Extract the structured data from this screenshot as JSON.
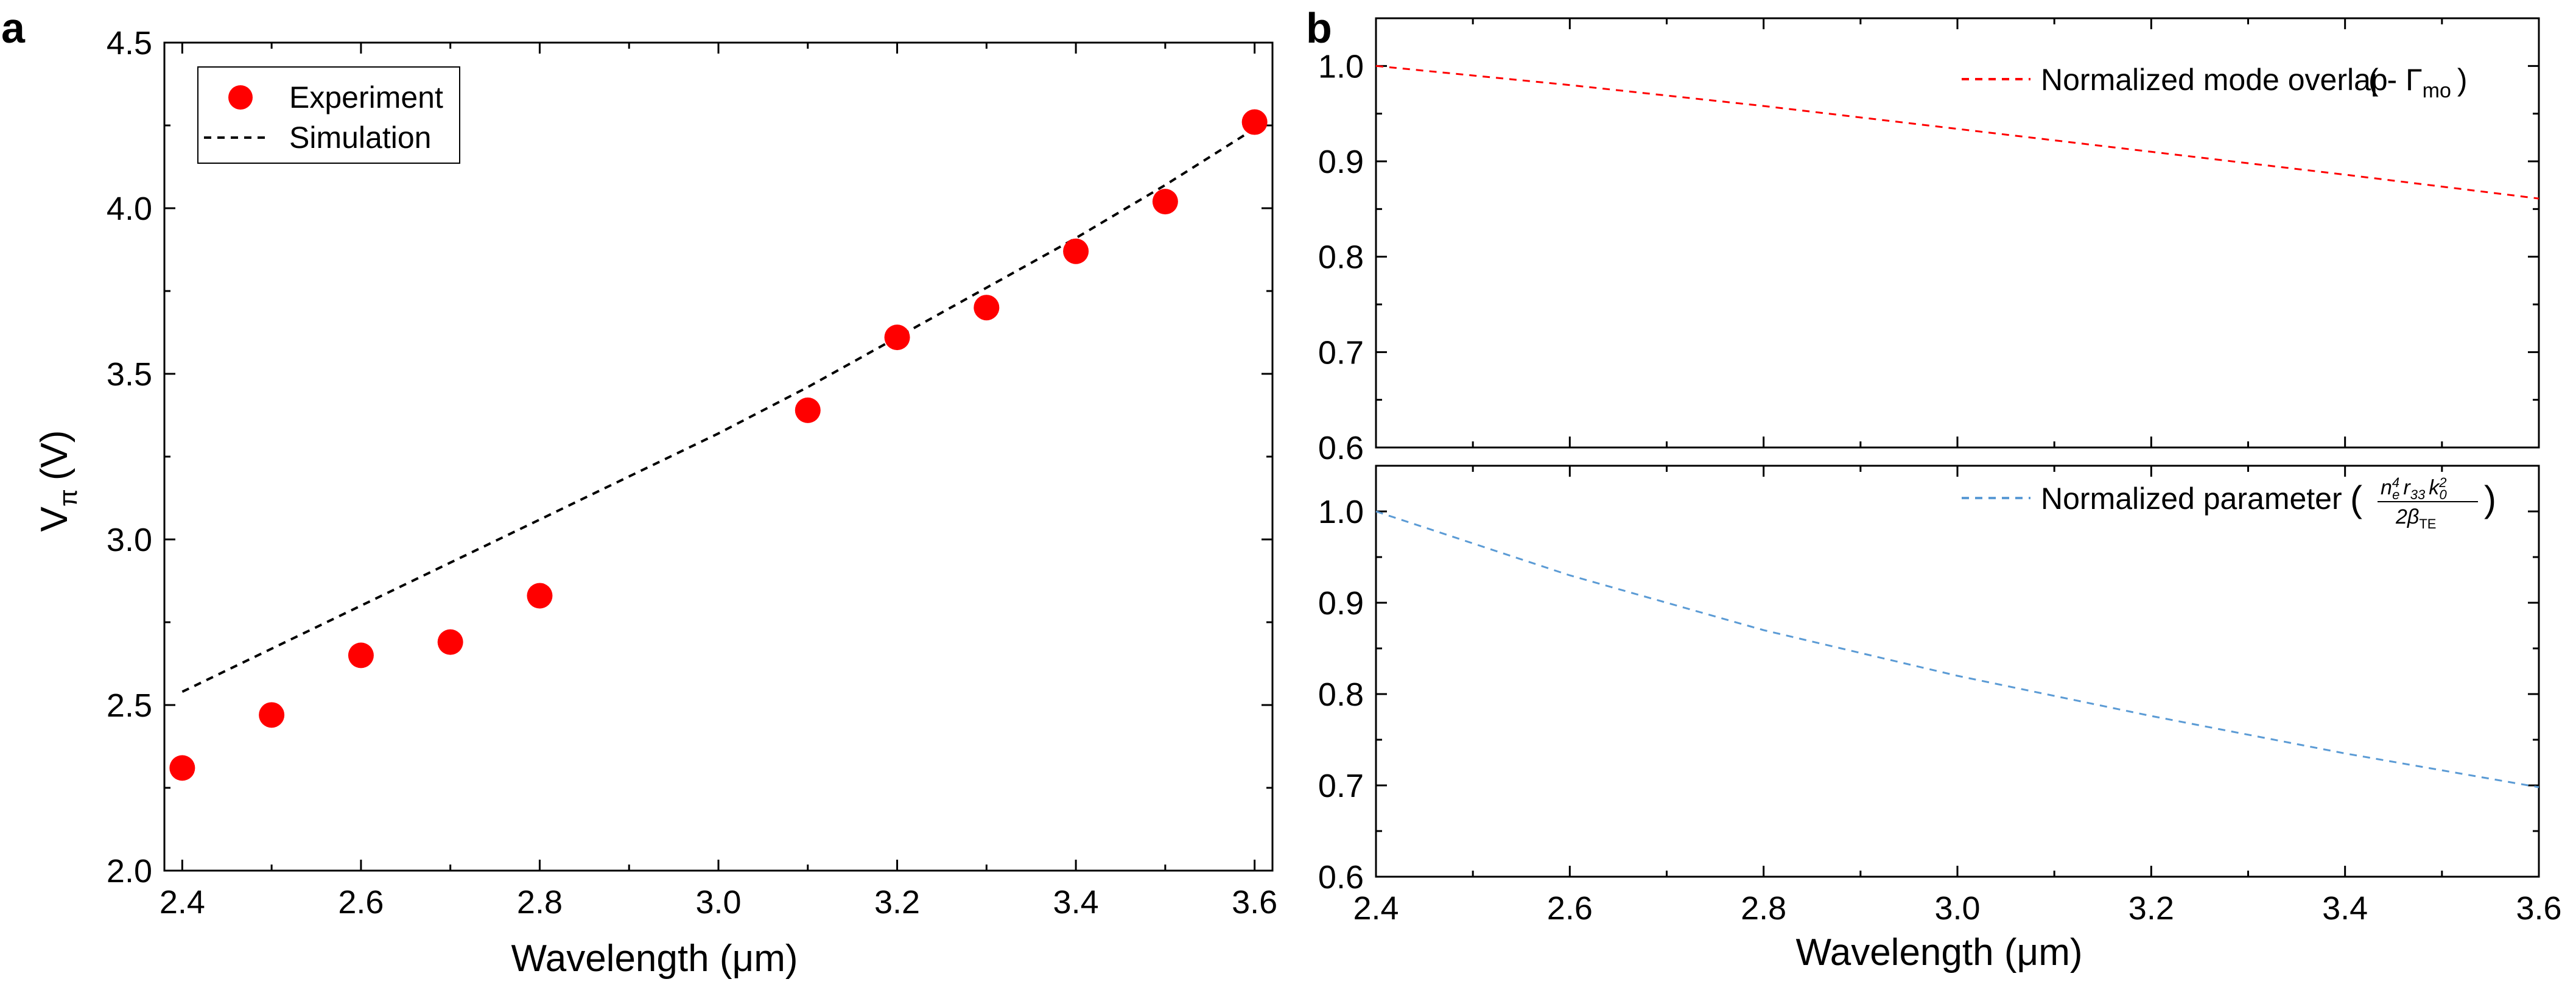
{
  "chart_data": [
    {
      "panel_label": "a",
      "type": "scatter",
      "xlabel": "Wavelength (μm)",
      "ylabel": "V",
      "ylabel_sub": "π",
      "ylabel_unit": "(V)",
      "xlim": [
        2.38,
        3.62
      ],
      "ylim": [
        2.0,
        4.5
      ],
      "xticks": [
        "2.4",
        "2.6",
        "2.8",
        "3.0",
        "3.2",
        "3.4",
        "3.6"
      ],
      "yticks": [
        "2.0",
        "2.5",
        "3.0",
        "3.5",
        "4.0",
        "4.5"
      ],
      "series": [
        {
          "name": "Experiment",
          "style": "markers",
          "color": "#ff0000",
          "x": [
            2.4,
            2.5,
            2.6,
            2.7,
            2.8,
            3.1,
            3.2,
            3.3,
            3.4,
            3.5,
            3.6
          ],
          "y": [
            2.31,
            2.47,
            2.65,
            2.69,
            2.83,
            3.39,
            3.61,
            3.7,
            3.87,
            4.02,
            4.26
          ]
        },
        {
          "name": "Simulation",
          "style": "dashed",
          "color": "#000000",
          "x": [
            2.4,
            2.5,
            2.6,
            2.7,
            2.8,
            2.9,
            3.0,
            3.1,
            3.2,
            3.3,
            3.4,
            3.5,
            3.6
          ],
          "y": [
            2.54,
            2.67,
            2.8,
            2.93,
            3.06,
            3.19,
            3.32,
            3.46,
            3.61,
            3.76,
            3.91,
            4.07,
            4.24
          ]
        }
      ]
    },
    {
      "panel_label": "b",
      "type": "line",
      "xlabel": "Wavelength (μm)",
      "xlim": [
        2.4,
        3.6
      ],
      "xticks": [
        "2.4",
        "2.6",
        "2.8",
        "3.0",
        "3.2",
        "3.4",
        "3.6"
      ],
      "subplots": [
        {
          "ylim": [
            0.6,
            1.05
          ],
          "yticks": [
            "0.6",
            "0.7",
            "0.8",
            "0.9",
            "1.0"
          ],
          "series": [
            {
              "name": "Normalized mode overlap",
              "formula": "( - Γ",
              "formula_sub": "mo",
              "formula_close": ")",
              "style": "dashed",
              "color": "#ff0000",
              "x": [
                2.4,
                2.6,
                2.8,
                3.0,
                3.2,
                3.4,
                3.6
              ],
              "y": [
                1.0,
                0.98,
                0.958,
                0.934,
                0.91,
                0.886,
                0.861
              ]
            }
          ]
        },
        {
          "ylim": [
            0.6,
            1.05
          ],
          "yticks": [
            "0.6",
            "0.7",
            "0.8",
            "0.9",
            "1.0"
          ],
          "series": [
            {
              "name": "Normalized parameter",
              "formula_num": "n",
              "formula_num_sup": "4",
              "formula_num_sub": "e",
              "formula_num2": "r",
              "formula_num2_sub": "33",
              "formula_num3": "k",
              "formula_num3_sup": "2",
              "formula_num3_sub": "0",
              "formula_den": "2β",
              "formula_den_sub": "TE",
              "style": "dashed",
              "color": "#5b9bd5",
              "x": [
                2.4,
                2.6,
                2.8,
                3.0,
                3.2,
                3.4,
                3.6
              ],
              "y": [
                1.0,
                0.93,
                0.87,
                0.82,
                0.776,
                0.735,
                0.698
              ]
            }
          ]
        }
      ]
    }
  ]
}
